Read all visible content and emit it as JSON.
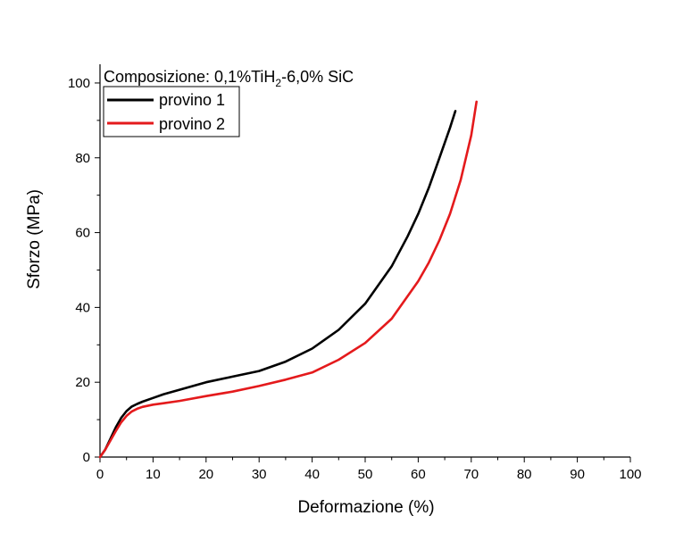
{
  "chart_data": {
    "type": "line",
    "title": "Composizione: 0,1%TiH2-6,0% SiC",
    "title_parts": {
      "prefix": "Composizione: 0,1%TiH",
      "subscript": "2",
      "suffix": "-6,0% SiC"
    },
    "xlabel": "Deformazione (%)",
    "ylabel": "Sforzo (MPa)",
    "xlim": [
      0,
      100
    ],
    "ylim": [
      0,
      105
    ],
    "x_ticks": [
      0,
      10,
      20,
      30,
      40,
      50,
      60,
      70,
      80,
      90,
      100
    ],
    "y_ticks": [
      0,
      20,
      40,
      60,
      80,
      100
    ],
    "grid": false,
    "legend_position": "top-left",
    "series": [
      {
        "name": "provino 1",
        "color": "#000000",
        "x": [
          0,
          1,
          2,
          3,
          4,
          5,
          6,
          7,
          8,
          10,
          12,
          15,
          20,
          25,
          30,
          35,
          40,
          45,
          50,
          55,
          58,
          60,
          62,
          64,
          66,
          67
        ],
        "y": [
          0,
          2,
          5,
          8,
          10.5,
          12.3,
          13.5,
          14.2,
          14.8,
          15.8,
          16.8,
          18,
          20,
          21.5,
          23,
          25.5,
          29,
          34,
          41,
          51,
          59,
          65,
          72,
          80,
          88,
          92.5
        ]
      },
      {
        "name": "provino 2",
        "color": "#e41a1c",
        "x": [
          0,
          1,
          2,
          3,
          4,
          5,
          6,
          7,
          8,
          10,
          12,
          15,
          20,
          25,
          30,
          35,
          40,
          45,
          50,
          55,
          60,
          62,
          64,
          66,
          68,
          70,
          71
        ],
        "y": [
          0,
          2,
          4.5,
          7,
          9.3,
          11,
          12.2,
          12.9,
          13.4,
          14,
          14.4,
          15,
          16.3,
          17.5,
          19,
          20.7,
          22.6,
          26,
          30.5,
          37,
          47,
          52,
          58,
          65,
          74,
          86,
          95
        ]
      }
    ]
  }
}
